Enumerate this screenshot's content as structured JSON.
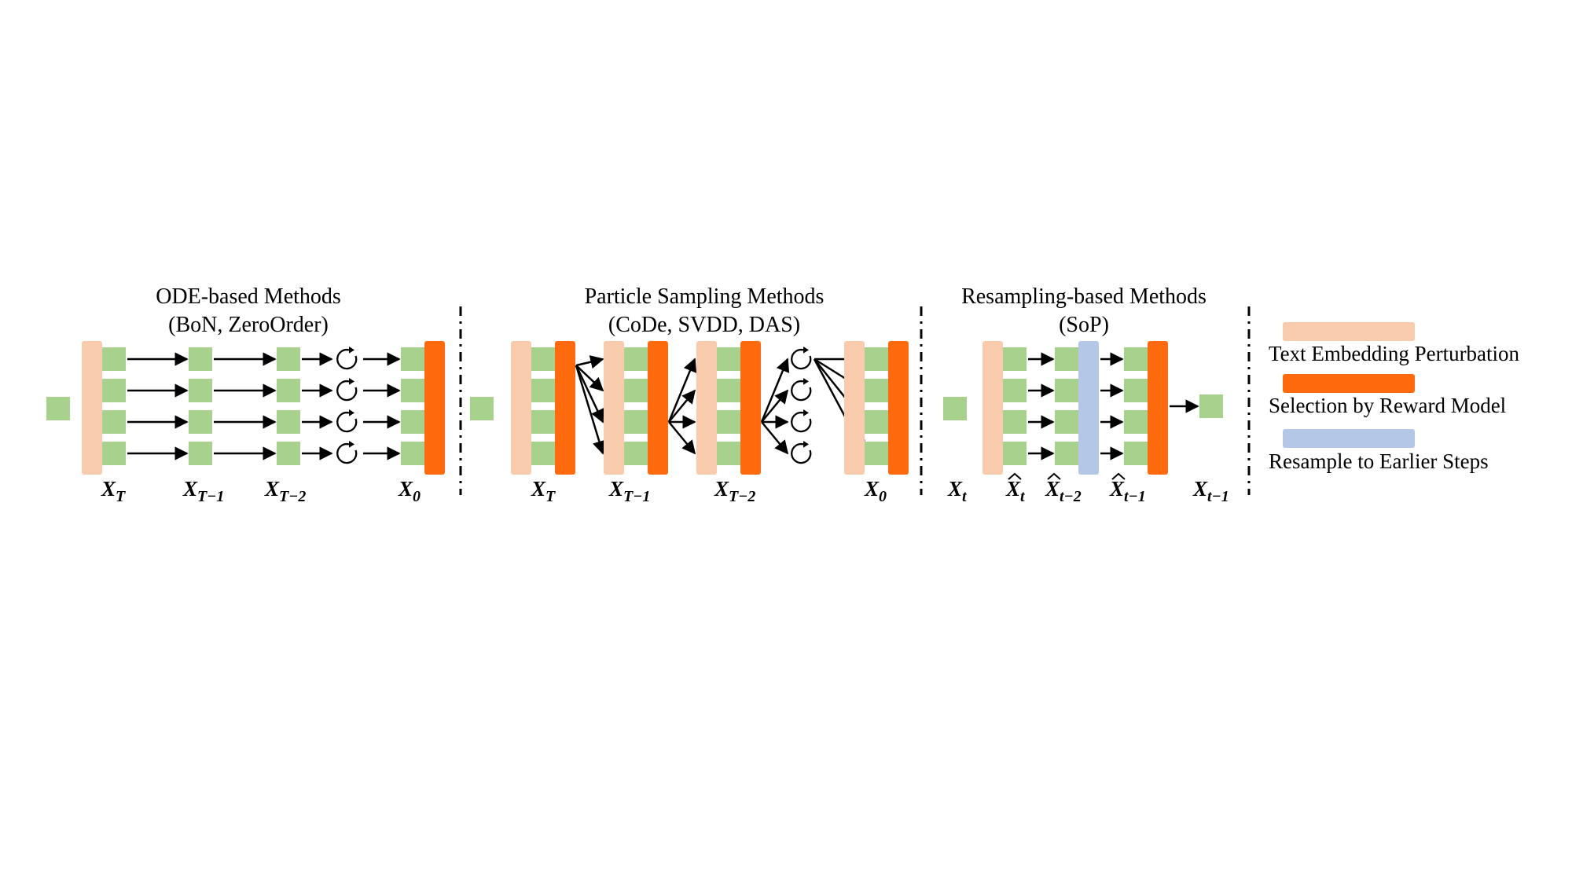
{
  "panels": [
    {
      "title": "ODE-based Methods",
      "subtitle": "(BoN, ZeroOrder)",
      "labels": [
        {
          "base": "X",
          "sub": "T",
          "hat": false
        },
        {
          "base": "X",
          "sub": "T−1",
          "hat": false
        },
        {
          "base": "X",
          "sub": "T−2",
          "hat": false
        },
        {
          "base": "X",
          "sub": "0",
          "hat": false
        }
      ]
    },
    {
      "title": "Particle Sampling Methods",
      "subtitle": "(CoDe, SVDD, DAS)",
      "labels": [
        {
          "base": "X",
          "sub": "T",
          "hat": false
        },
        {
          "base": "X",
          "sub": "T−1",
          "hat": false
        },
        {
          "base": "X",
          "sub": "T−2",
          "hat": false
        },
        {
          "base": "X",
          "sub": "0",
          "hat": false
        }
      ]
    },
    {
      "title": "Resampling-based Methods",
      "subtitle": "(SoP)",
      "labels": [
        {
          "base": "X",
          "sub": "t",
          "hat": false
        },
        {
          "base": "X",
          "sub": "t",
          "hat": true
        },
        {
          "base": "X",
          "sub": "t−2",
          "hat": true
        },
        {
          "base": "X",
          "sub": "t−1",
          "hat": true
        },
        {
          "base": "X",
          "sub": "t−1",
          "hat": false
        }
      ]
    }
  ],
  "legend": [
    {
      "label": "Text Embedding Perturbation",
      "color": "#F8CBAD"
    },
    {
      "label": "Selection by Reward Model",
      "color": "#FF6A0E"
    },
    {
      "label": "Resample to Earlier Steps",
      "color": "#B4C7E7"
    }
  ],
  "colors": {
    "sample": "#A9D18E",
    "perturbation": "#F8CBAD",
    "selection": "#FF6A0E",
    "resample": "#B4C7E7",
    "arrow": "#000000"
  },
  "icons": {
    "resample_loop": "refresh-loop-icon"
  }
}
